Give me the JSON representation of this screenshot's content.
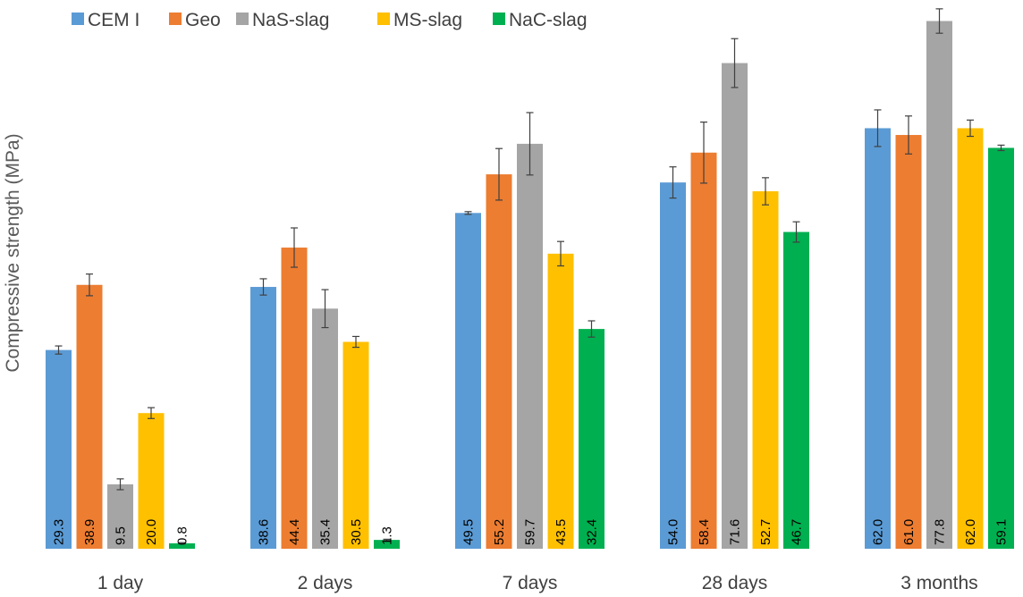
{
  "chart_data": {
    "type": "bar",
    "title": "",
    "xlabel": "",
    "ylabel": "Compressive strength (MPa)",
    "ylim": [
      0,
      80
    ],
    "grid": false,
    "legend_position": "top-left",
    "categories": [
      "1 day",
      "2 days",
      "7 days",
      "28 days",
      "3 months"
    ],
    "series": [
      {
        "name": "CEM I",
        "color": "#5b9bd5",
        "values": [
          29.3,
          38.6,
          49.5,
          54.0,
          62.0
        ],
        "errors": [
          0.6,
          1.2,
          0.2,
          2.3,
          2.7
        ],
        "labels": [
          "29.3",
          "38.6",
          "49.5",
          "54.0",
          "62.0"
        ]
      },
      {
        "name": "Geo",
        "color": "#ed7d31",
        "values": [
          38.9,
          44.4,
          55.2,
          58.4,
          61.0
        ],
        "errors": [
          1.6,
          2.9,
          3.8,
          4.5,
          2.8
        ],
        "labels": [
          "38.9",
          "44.4",
          "55.2",
          "58.4",
          "61.0"
        ]
      },
      {
        "name": "NaS-slag",
        "color": "#a5a5a5",
        "values": [
          9.5,
          35.4,
          59.7,
          71.6,
          77.8
        ],
        "errors": [
          0.8,
          2.8,
          4.6,
          3.6,
          1.8
        ],
        "labels": [
          "9.5",
          "35.4",
          "59.7",
          "71.6",
          "77.8"
        ]
      },
      {
        "name": "MS-slag",
        "color": "#ffc000",
        "values": [
          20.0,
          30.5,
          43.5,
          52.7,
          62.0
        ],
        "errors": [
          0.8,
          0.8,
          1.8,
          2.0,
          1.2
        ],
        "labels": [
          "20.0",
          "30.5",
          "43.5",
          "52.7",
          "62.0"
        ]
      },
      {
        "name": "NaC-slag",
        "color": "#00b050",
        "values": [
          0.8,
          1.3,
          32.4,
          46.7,
          59.1
        ],
        "errors": [
          0.1,
          0.1,
          1.2,
          1.5,
          0.4
        ],
        "labels": [
          "0.8",
          "1.3",
          "32.4",
          "46.7",
          "59.1"
        ]
      }
    ]
  }
}
